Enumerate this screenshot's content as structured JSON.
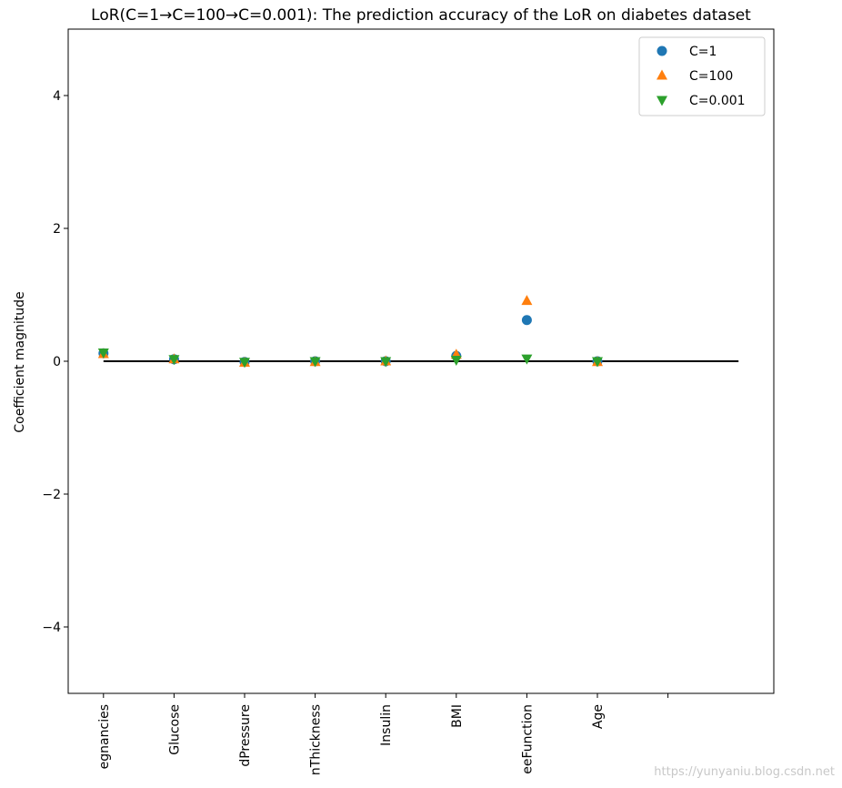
{
  "chart_data": {
    "type": "scatter",
    "title": "LoR(C=1→C=100→C=0.001): The prediction accuracy of the LoR on diabetes dataset",
    "xlabel": "",
    "ylabel": "Coefficient magnitude",
    "ylim": [
      -5,
      5
    ],
    "xlim": [
      -0.5,
      9.5
    ],
    "yticks": [
      -4,
      -2,
      0,
      2,
      4
    ],
    "yticklabels": [
      "−4",
      "−2",
      "0",
      "2",
      "4"
    ],
    "categories": [
      "Pregnancies",
      "Glucose",
      "BloodPressure",
      "SkinThickness",
      "Insulin",
      "BMI",
      "DiabetesPedigreeFunction",
      "Age"
    ],
    "visible_category_labels": [
      "egnancies",
      "Glucose",
      "dPressure",
      "nThickness",
      "Insulin",
      "BMI",
      "eeFunction",
      "Age"
    ],
    "extra_xtick_positions": [
      8
    ],
    "hline": {
      "y": 0,
      "x_from": 0,
      "x_to": 9,
      "color": "#000000"
    },
    "legend_position": "top-right",
    "grid": false,
    "series": [
      {
        "name": "C=1",
        "marker": "circle",
        "color": "#1f77b4",
        "values": [
          0.12,
          0.03,
          -0.01,
          0.0,
          0.0,
          0.08,
          0.62,
          0.0
        ]
      },
      {
        "name": "C=100",
        "marker": "triangle-up",
        "color": "#ff7f0e",
        "values": [
          0.11,
          0.03,
          -0.02,
          -0.01,
          0.0,
          0.1,
          0.91,
          -0.01
        ]
      },
      {
        "name": "C=0.001",
        "marker": "triangle-down",
        "color": "#2ca02c",
        "values": [
          0.13,
          0.03,
          -0.01,
          0.0,
          0.0,
          0.02,
          0.04,
          0.0
        ]
      }
    ]
  },
  "watermark": "https://yunyaniu.blog.csdn.net"
}
